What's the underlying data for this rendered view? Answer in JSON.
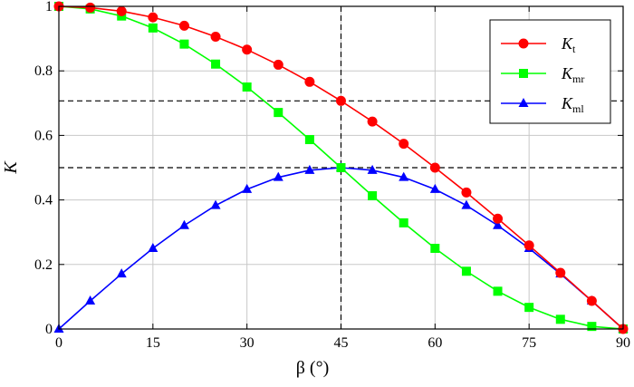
{
  "chart_data": {
    "type": "line",
    "xlabel": "β (°)",
    "ylabel": "K",
    "xlim": [
      0,
      90
    ],
    "ylim": [
      0,
      1
    ],
    "x_ticks": [
      "0",
      "15",
      "30",
      "45",
      "60",
      "75",
      "90"
    ],
    "y_ticks": [
      "0",
      "0.2",
      "0.4",
      "0.6",
      "0.8",
      "1"
    ],
    "grid": true,
    "legend_position": "top-right",
    "x": [
      0,
      5,
      10,
      15,
      20,
      25,
      30,
      35,
      40,
      45,
      50,
      55,
      60,
      65,
      70,
      75,
      80,
      85,
      90
    ],
    "series": [
      {
        "name": "K_t",
        "label_main": "K",
        "label_sub": "t",
        "color": "#ff0000",
        "marker": "circle",
        "values": [
          1.0,
          0.996,
          0.985,
          0.966,
          0.94,
          0.906,
          0.866,
          0.819,
          0.766,
          0.707,
          0.643,
          0.574,
          0.5,
          0.423,
          0.342,
          0.259,
          0.174,
          0.087,
          0.0
        ]
      },
      {
        "name": "K_mr",
        "label_main": "K",
        "label_sub": "mr",
        "color": "#00ff00",
        "marker": "square",
        "values": [
          1.0,
          0.992,
          0.97,
          0.933,
          0.883,
          0.821,
          0.75,
          0.671,
          0.587,
          0.5,
          0.413,
          0.329,
          0.25,
          0.179,
          0.117,
          0.067,
          0.03,
          0.008,
          0.0
        ]
      },
      {
        "name": "K_ml",
        "label_main": "K",
        "label_sub": "ml",
        "color": "#0000ff",
        "marker": "triangle",
        "values": [
          0.0,
          0.087,
          0.171,
          0.25,
          0.321,
          0.383,
          0.433,
          0.47,
          0.492,
          0.5,
          0.492,
          0.47,
          0.433,
          0.383,
          0.321,
          0.25,
          0.171,
          0.087,
          0.0
        ]
      }
    ],
    "reference_lines": {
      "vertical_x": [
        45
      ],
      "horizontal_y": [
        0.707,
        0.5
      ]
    }
  }
}
